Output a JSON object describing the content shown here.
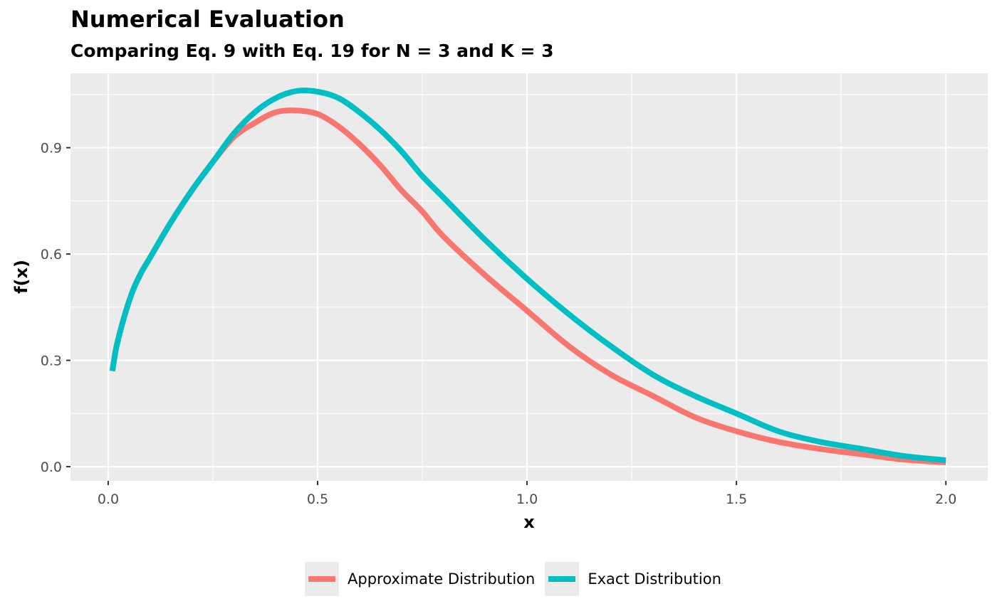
{
  "title": "Numerical Evaluation",
  "subtitle": "Comparing Eq. 9 with Eq. 19 for N = 3 and K = 3",
  "colors": {
    "approximate": "#F8766D",
    "exact": "#00BFC4",
    "panel": "#EBEBEB",
    "grid": "#FFFFFF"
  },
  "chart_data": {
    "type": "line",
    "title": "Numerical Evaluation",
    "subtitle": "Comparing Eq. 9 with Eq. 19 for N = 3 and K = 3",
    "xlabel": "x",
    "ylabel": "f(x)",
    "xlim": [
      -0.09,
      2.1
    ],
    "ylim": [
      -0.04,
      1.11
    ],
    "x_ticks": [
      0.0,
      0.5,
      1.0,
      1.5,
      2.0
    ],
    "x_tick_labels": [
      "0.0",
      "0.5",
      "1.0",
      "1.5",
      "2.0"
    ],
    "y_ticks": [
      0.0,
      0.3,
      0.6,
      0.9
    ],
    "y_tick_labels": [
      "0.0",
      "0.3",
      "0.6",
      "0.9"
    ],
    "grid": true,
    "legend_position": "bottom",
    "series": [
      {
        "name": "Approximate Distribution",
        "color": "#F8766D",
        "x": [
          0.01,
          0.02,
          0.04,
          0.06,
          0.08,
          0.1,
          0.15,
          0.2,
          0.25,
          0.3,
          0.35,
          0.4,
          0.45,
          0.5,
          0.55,
          0.6,
          0.65,
          0.7,
          0.75,
          0.8,
          0.9,
          1.0,
          1.1,
          1.2,
          1.3,
          1.4,
          1.5,
          1.6,
          1.7,
          1.8,
          1.9,
          2.0
        ],
        "values": [
          0.27,
          0.34,
          0.43,
          0.5,
          0.55,
          0.59,
          0.69,
          0.78,
          0.86,
          0.93,
          0.97,
          1.0,
          1.005,
          0.995,
          0.96,
          0.91,
          0.85,
          0.78,
          0.72,
          0.65,
          0.54,
          0.44,
          0.34,
          0.26,
          0.2,
          0.14,
          0.1,
          0.07,
          0.05,
          0.035,
          0.02,
          0.012
        ]
      },
      {
        "name": "Exact Distribution",
        "color": "#00BFC4",
        "x": [
          0.01,
          0.02,
          0.04,
          0.06,
          0.08,
          0.1,
          0.15,
          0.2,
          0.25,
          0.3,
          0.35,
          0.4,
          0.45,
          0.5,
          0.55,
          0.6,
          0.65,
          0.7,
          0.75,
          0.8,
          0.9,
          1.0,
          1.1,
          1.2,
          1.3,
          1.4,
          1.5,
          1.6,
          1.7,
          1.8,
          1.9,
          2.0
        ],
        "values": [
          0.27,
          0.34,
          0.43,
          0.5,
          0.55,
          0.59,
          0.69,
          0.78,
          0.86,
          0.94,
          1.0,
          1.04,
          1.06,
          1.058,
          1.04,
          1.0,
          0.95,
          0.89,
          0.82,
          0.76,
          0.64,
          0.53,
          0.43,
          0.34,
          0.26,
          0.2,
          0.15,
          0.1,
          0.07,
          0.05,
          0.03,
          0.018
        ]
      }
    ]
  }
}
